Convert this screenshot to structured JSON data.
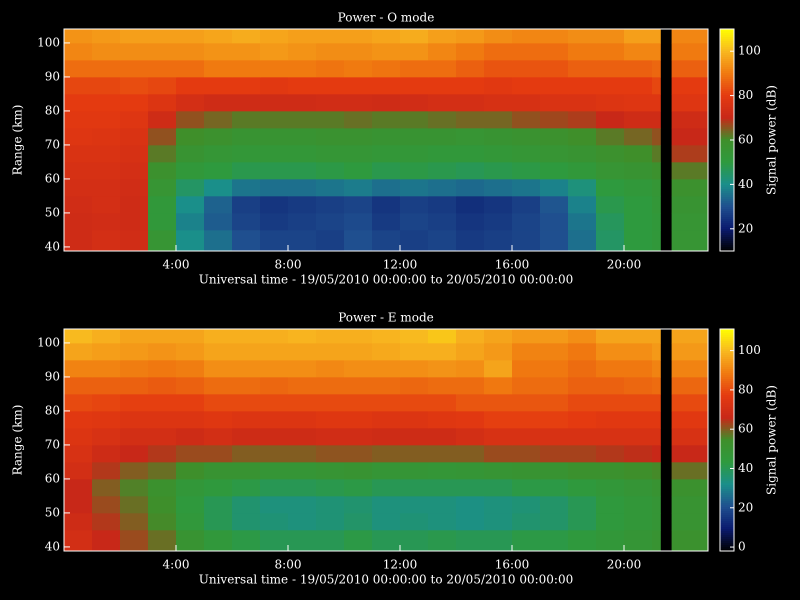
{
  "chart_data": [
    {
      "type": "heatmap",
      "title": "Power - O mode",
      "x_label": "Universal time - 19/05/2010 00:00:00 to 20/05/2010 00:00:00",
      "y_label": "Range (km)",
      "colorbar_label": "Signal power (dB)",
      "colorscale": [
        "#000000",
        "#0a1a6e",
        "#1f4f8f",
        "#1a8f8a",
        "#2e9a3e",
        "#3f8f2a",
        "#c82818",
        "#e43a10",
        "#f07a10",
        "#f8b820",
        "#ffff00"
      ],
      "xlim": [
        0,
        23
      ],
      "xticks": [
        {
          "value": 4,
          "label": "4:00"
        },
        {
          "value": 8,
          "label": "8:00"
        },
        {
          "value": 12,
          "label": "12:00"
        },
        {
          "value": 16,
          "label": "16:00"
        },
        {
          "value": 20,
          "label": "20:00"
        }
      ],
      "ylim": [
        38.8,
        104.1
      ],
      "yticks": [
        40,
        50,
        60,
        70,
        80,
        90,
        100
      ],
      "clim": [
        10,
        110
      ],
      "cticks": [
        20,
        40,
        60,
        80,
        100
      ],
      "x_bins": [
        0,
        1,
        2,
        3,
        4,
        5,
        6,
        7,
        8,
        9,
        10,
        11,
        12,
        13,
        14,
        15,
        16,
        17,
        18,
        19,
        20,
        21,
        21.3,
        21.7,
        23
      ],
      "y_bins": [
        38.8,
        45,
        50,
        55,
        60,
        65,
        70,
        75,
        80,
        85,
        90,
        95,
        100,
        104.1
      ],
      "values": [
        [
          72,
          74,
          73,
          55,
          40,
          35,
          30,
          28,
          28,
          27,
          30,
          28,
          27,
          28,
          26,
          27,
          28,
          30,
          35,
          45,
          50,
          52,
          null,
          55
        ],
        [
          72,
          73,
          72,
          52,
          38,
          32,
          28,
          26,
          27,
          28,
          29,
          26,
          28,
          27,
          25,
          26,
          28,
          30,
          36,
          46,
          50,
          52,
          null,
          55
        ],
        [
          73,
          74,
          72,
          52,
          40,
          33,
          27,
          25,
          26,
          27,
          28,
          25,
          27,
          26,
          24,
          25,
          27,
          31,
          38,
          48,
          50,
          53,
          null,
          56
        ],
        [
          74,
          74,
          73,
          55,
          45,
          40,
          36,
          35,
          35,
          36,
          37,
          35,
          36,
          35,
          34,
          35,
          36,
          38,
          42,
          50,
          52,
          54,
          null,
          58
        ],
        [
          75,
          75,
          74,
          58,
          52,
          50,
          48,
          48,
          48,
          49,
          50,
          48,
          49,
          48,
          47,
          48,
          49,
          50,
          52,
          55,
          56,
          58,
          null,
          62
        ],
        [
          76,
          76,
          75,
          62,
          56,
          54,
          53,
          53,
          53,
          54,
          54,
          53,
          53,
          52,
          52,
          53,
          54,
          55,
          56,
          58,
          60,
          62,
          null,
          68
        ],
        [
          78,
          77,
          76,
          66,
          60,
          58,
          56,
          56,
          56,
          57,
          57,
          56,
          56,
          56,
          55,
          56,
          57,
          58,
          60,
          62,
          64,
          66,
          null,
          70
        ],
        [
          79,
          79,
          78,
          72,
          66,
          64,
          62,
          62,
          62,
          62,
          63,
          62,
          62,
          63,
          64,
          64,
          66,
          67,
          68,
          70,
          72,
          72,
          null,
          72
        ],
        [
          80,
          80,
          80,
          77,
          74,
          72,
          72,
          72,
          72,
          73,
          73,
          72,
          73,
          74,
          74,
          75,
          75,
          76,
          76,
          77,
          78,
          78,
          null,
          78
        ],
        [
          82,
          82,
          83,
          82,
          80,
          80,
          80,
          79,
          80,
          80,
          80,
          80,
          80,
          80,
          80,
          79,
          80,
          80,
          80,
          80,
          80,
          82,
          null,
          80
        ],
        [
          88,
          88,
          88,
          88,
          88,
          90,
          90,
          90,
          90,
          89,
          90,
          89,
          88,
          88,
          86,
          84,
          84,
          84,
          86,
          86,
          86,
          87,
          null,
          86
        ],
        [
          92,
          93,
          93,
          93,
          93,
          94,
          94,
          95,
          94,
          93,
          93,
          94,
          94,
          92,
          90,
          88,
          88,
          88,
          90,
          90,
          92,
          92,
          null,
          90
        ],
        [
          94,
          95,
          96,
          96,
          96,
          97,
          98,
          97,
          96,
          96,
          96,
          97,
          98,
          96,
          95,
          93,
          92,
          92,
          93,
          93,
          96,
          96,
          null,
          92
        ]
      ]
    },
    {
      "type": "heatmap",
      "title": "Power - E mode",
      "x_label": "Universal time - 19/05/2010 00:00:00 to 20/05/2010 00:00:00",
      "y_label": "Range (km)",
      "colorbar_label": "Signal power (dB)",
      "colorscale": [
        "#000000",
        "#0a1a6e",
        "#1f4f8f",
        "#1a8f8a",
        "#2e9a3e",
        "#3f8f2a",
        "#c82818",
        "#e43a10",
        "#f07a10",
        "#f8b820",
        "#ffff00"
      ],
      "xlim": [
        0,
        23
      ],
      "xticks": [
        {
          "value": 4,
          "label": "4:00"
        },
        {
          "value": 8,
          "label": "8:00"
        },
        {
          "value": 12,
          "label": "12:00"
        },
        {
          "value": 16,
          "label": "16:00"
        },
        {
          "value": 20,
          "label": "20:00"
        }
      ],
      "ylim": [
        38.8,
        104.1
      ],
      "yticks": [
        40,
        50,
        60,
        70,
        80,
        90,
        100
      ],
      "clim": [
        -2,
        111
      ],
      "cticks": [
        0,
        20,
        40,
        60,
        80,
        100
      ],
      "x_bins": [
        0,
        1,
        2,
        3,
        4,
        5,
        6,
        7,
        8,
        9,
        10,
        11,
        12,
        13,
        14,
        15,
        16,
        17,
        18,
        19,
        20,
        21,
        21.3,
        21.7,
        23
      ],
      "y_bins": [
        38.8,
        45,
        50,
        55,
        60,
        65,
        70,
        75,
        80,
        85,
        90,
        95,
        100,
        104.1
      ],
      "values": [
        [
          70,
          66,
          62,
          58,
          50,
          45,
          42,
          40,
          40,
          40,
          42,
          40,
          40,
          41,
          40,
          40,
          42,
          42,
          44,
          46,
          48,
          50,
          null,
          52
        ],
        [
          68,
          64,
          60,
          55,
          45,
          40,
          36,
          35,
          34,
          35,
          37,
          34,
          35,
          34,
          33,
          34,
          36,
          37,
          40,
          44,
          46,
          48,
          null,
          50
        ],
        [
          66,
          62,
          58,
          54,
          44,
          40,
          36,
          34,
          34,
          35,
          36,
          34,
          34,
          34,
          33,
          34,
          35,
          37,
          40,
          44,
          46,
          48,
          null,
          50
        ],
        [
          66,
          60,
          56,
          52,
          46,
          44,
          42,
          40,
          40,
          41,
          42,
          40,
          40,
          40,
          40,
          40,
          42,
          42,
          44,
          46,
          48,
          50,
          null,
          52
        ],
        [
          70,
          64,
          60,
          58,
          54,
          50,
          50,
          48,
          48,
          49,
          50,
          48,
          48,
          47,
          48,
          49,
          50,
          50,
          52,
          52,
          54,
          55,
          null,
          58
        ],
        [
          72,
          68,
          66,
          64,
          62,
          62,
          60,
          60,
          60,
          61,
          61,
          60,
          60,
          60,
          60,
          62,
          62,
          63,
          63,
          64,
          65,
          66,
          null,
          66
        ],
        [
          74,
          72,
          70,
          70,
          68,
          70,
          68,
          68,
          68,
          69,
          69,
          68,
          68,
          68,
          70,
          72,
          72,
          72,
          72,
          72,
          72,
          72,
          null,
          72
        ],
        [
          76,
          75,
          74,
          74,
          74,
          75,
          74,
          74,
          74,
          75,
          75,
          74,
          74,
          75,
          76,
          78,
          78,
          78,
          77,
          76,
          76,
          76,
          null,
          76
        ],
        [
          80,
          79,
          78,
          78,
          78,
          80,
          80,
          80,
          80,
          80,
          80,
          80,
          80,
          80,
          82,
          82,
          82,
          82,
          80,
          80,
          80,
          80,
          null,
          80
        ],
        [
          84,
          84,
          84,
          83,
          84,
          86,
          86,
          85,
          86,
          86,
          86,
          86,
          85,
          86,
          86,
          88,
          86,
          86,
          84,
          84,
          85,
          86,
          null,
          85
        ],
        [
          90,
          90,
          89,
          88,
          89,
          92,
          92,
          92,
          92,
          91,
          92,
          92,
          92,
          93,
          92,
          96,
          88,
          88,
          86,
          88,
          88,
          90,
          null,
          90
        ],
        [
          96,
          95,
          94,
          93,
          94,
          96,
          96,
          96,
          96,
          96,
          96,
          97,
          98,
          98,
          96,
          94,
          90,
          90,
          88,
          92,
          92,
          94,
          null,
          94
        ],
        [
          100,
          98,
          96,
          96,
          96,
          98,
          98,
          98,
          99,
          98,
          98,
          99,
          100,
          102,
          98,
          96,
          94,
          94,
          92,
          96,
          96,
          96,
          null,
          96
        ]
      ]
    }
  ]
}
